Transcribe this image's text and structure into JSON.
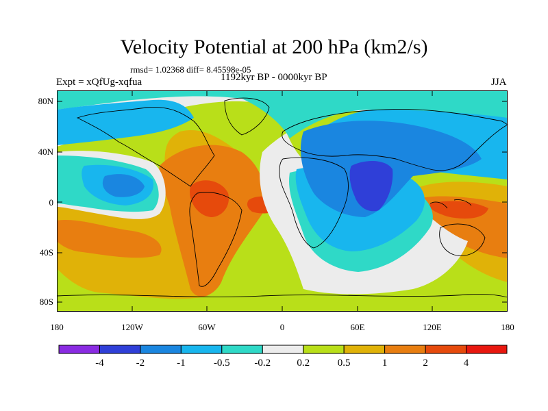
{
  "title": "Velocity Potential at 200 hPa (km2/s)",
  "stats": "rmsd= 1.02368 diff= 8.45598e-05",
  "expt": "Expt = xQfUg-xqfua",
  "period": "1192kyr BP - 0000kyr BP",
  "season": "JJA",
  "lat_labels": [
    "80N",
    "40N",
    "0",
    "40S",
    "80S"
  ],
  "lon_labels": [
    "180",
    "120W",
    "60W",
    "0",
    "60E",
    "120E",
    "180"
  ],
  "colorbar": {
    "colors": [
      "#8a2be2",
      "#2f3fd8",
      "#1a86e0",
      "#18b6ee",
      "#2fd9c7",
      "#ececec",
      "#b9df19",
      "#e0b208",
      "#e87e10",
      "#e64a0c",
      "#e8170f"
    ],
    "labels": [
      "-4",
      "-2",
      "-1",
      "-0.5",
      "-0.2",
      "0.2",
      "0.5",
      "1",
      "2",
      "4"
    ]
  }
}
